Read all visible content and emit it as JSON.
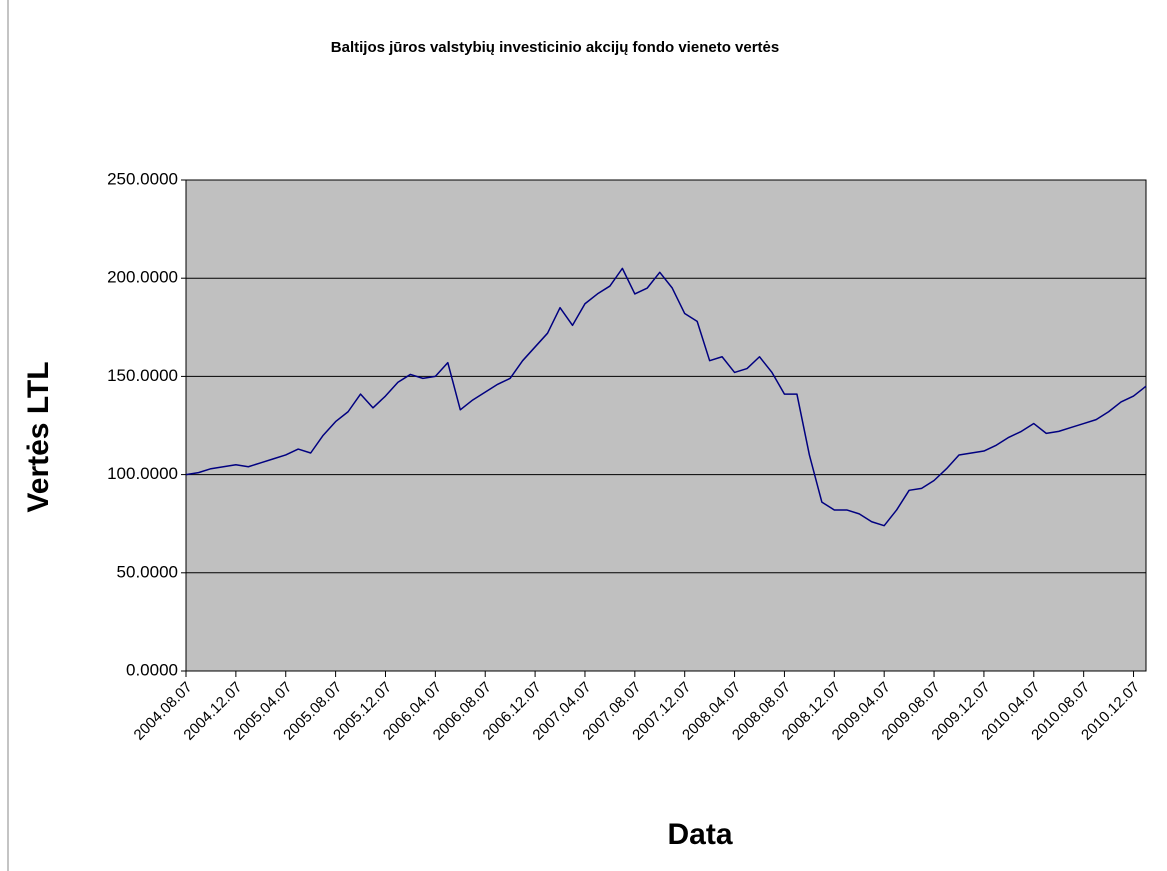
{
  "chart_data": {
    "type": "line",
    "title": "Baltijos jūros valstybių investicinio akcijų fondo vieneto vertės",
    "x_label": "Data",
    "y_label": "Vertės LTL",
    "categories": [
      "2004.08.07",
      null,
      null,
      null,
      "2004.12.07",
      null,
      null,
      null,
      "2005.04.07",
      null,
      null,
      null,
      "2005.08.07",
      null,
      null,
      null,
      "2005.12.07",
      null,
      null,
      null,
      "2006.04.07",
      null,
      null,
      null,
      "2006.08.07",
      null,
      null,
      null,
      "2006.12.07",
      null,
      null,
      null,
      "2007.04.07",
      null,
      null,
      null,
      "2007.08.07",
      null,
      null,
      null,
      "2007.12.07",
      null,
      null,
      null,
      "2008.04.07",
      null,
      null,
      null,
      "2008.08.07",
      null,
      null,
      null,
      "2008.12.07",
      null,
      null,
      null,
      "2009.04.07",
      null,
      null,
      null,
      "2009.08.07",
      null,
      null,
      null,
      "2009.12.07",
      null,
      null,
      null,
      "2010.04.07",
      null,
      null,
      null,
      "2010.08.07",
      null,
      null,
      null,
      "2010.12.07",
      null
    ],
    "series": [
      {
        "name": "Vertės LTL",
        "color": "#000080",
        "values": [
          100,
          101,
          103,
          104,
          105,
          104,
          106,
          108,
          110,
          113,
          111,
          120,
          127,
          132,
          141,
          134,
          140,
          147,
          151,
          149,
          150,
          157,
          133,
          138,
          142,
          146,
          149,
          158,
          165,
          172,
          185,
          176,
          187,
          192,
          196,
          205,
          192,
          195,
          203,
          195,
          182,
          178,
          158,
          160,
          152,
          154,
          160,
          152,
          141,
          141,
          110,
          86,
          82,
          82,
          80,
          76,
          74,
          82,
          92,
          93,
          97,
          103,
          110,
          111,
          112,
          115,
          119,
          122,
          126,
          121,
          122,
          124,
          126,
          128,
          132,
          137,
          140,
          145
        ]
      }
    ],
    "ylim": [
      0,
      250
    ],
    "yticks": [
      {
        "value": 0,
        "label": "0.0000"
      },
      {
        "value": 50,
        "label": "50.0000"
      },
      {
        "value": 100,
        "label": "100.0000"
      },
      {
        "value": 150,
        "label": "150.0000"
      },
      {
        "value": 200,
        "label": "200.0000"
      },
      {
        "value": 250,
        "label": "250.0000"
      }
    ],
    "grid": true,
    "plot_background": "#c0c0c0"
  }
}
